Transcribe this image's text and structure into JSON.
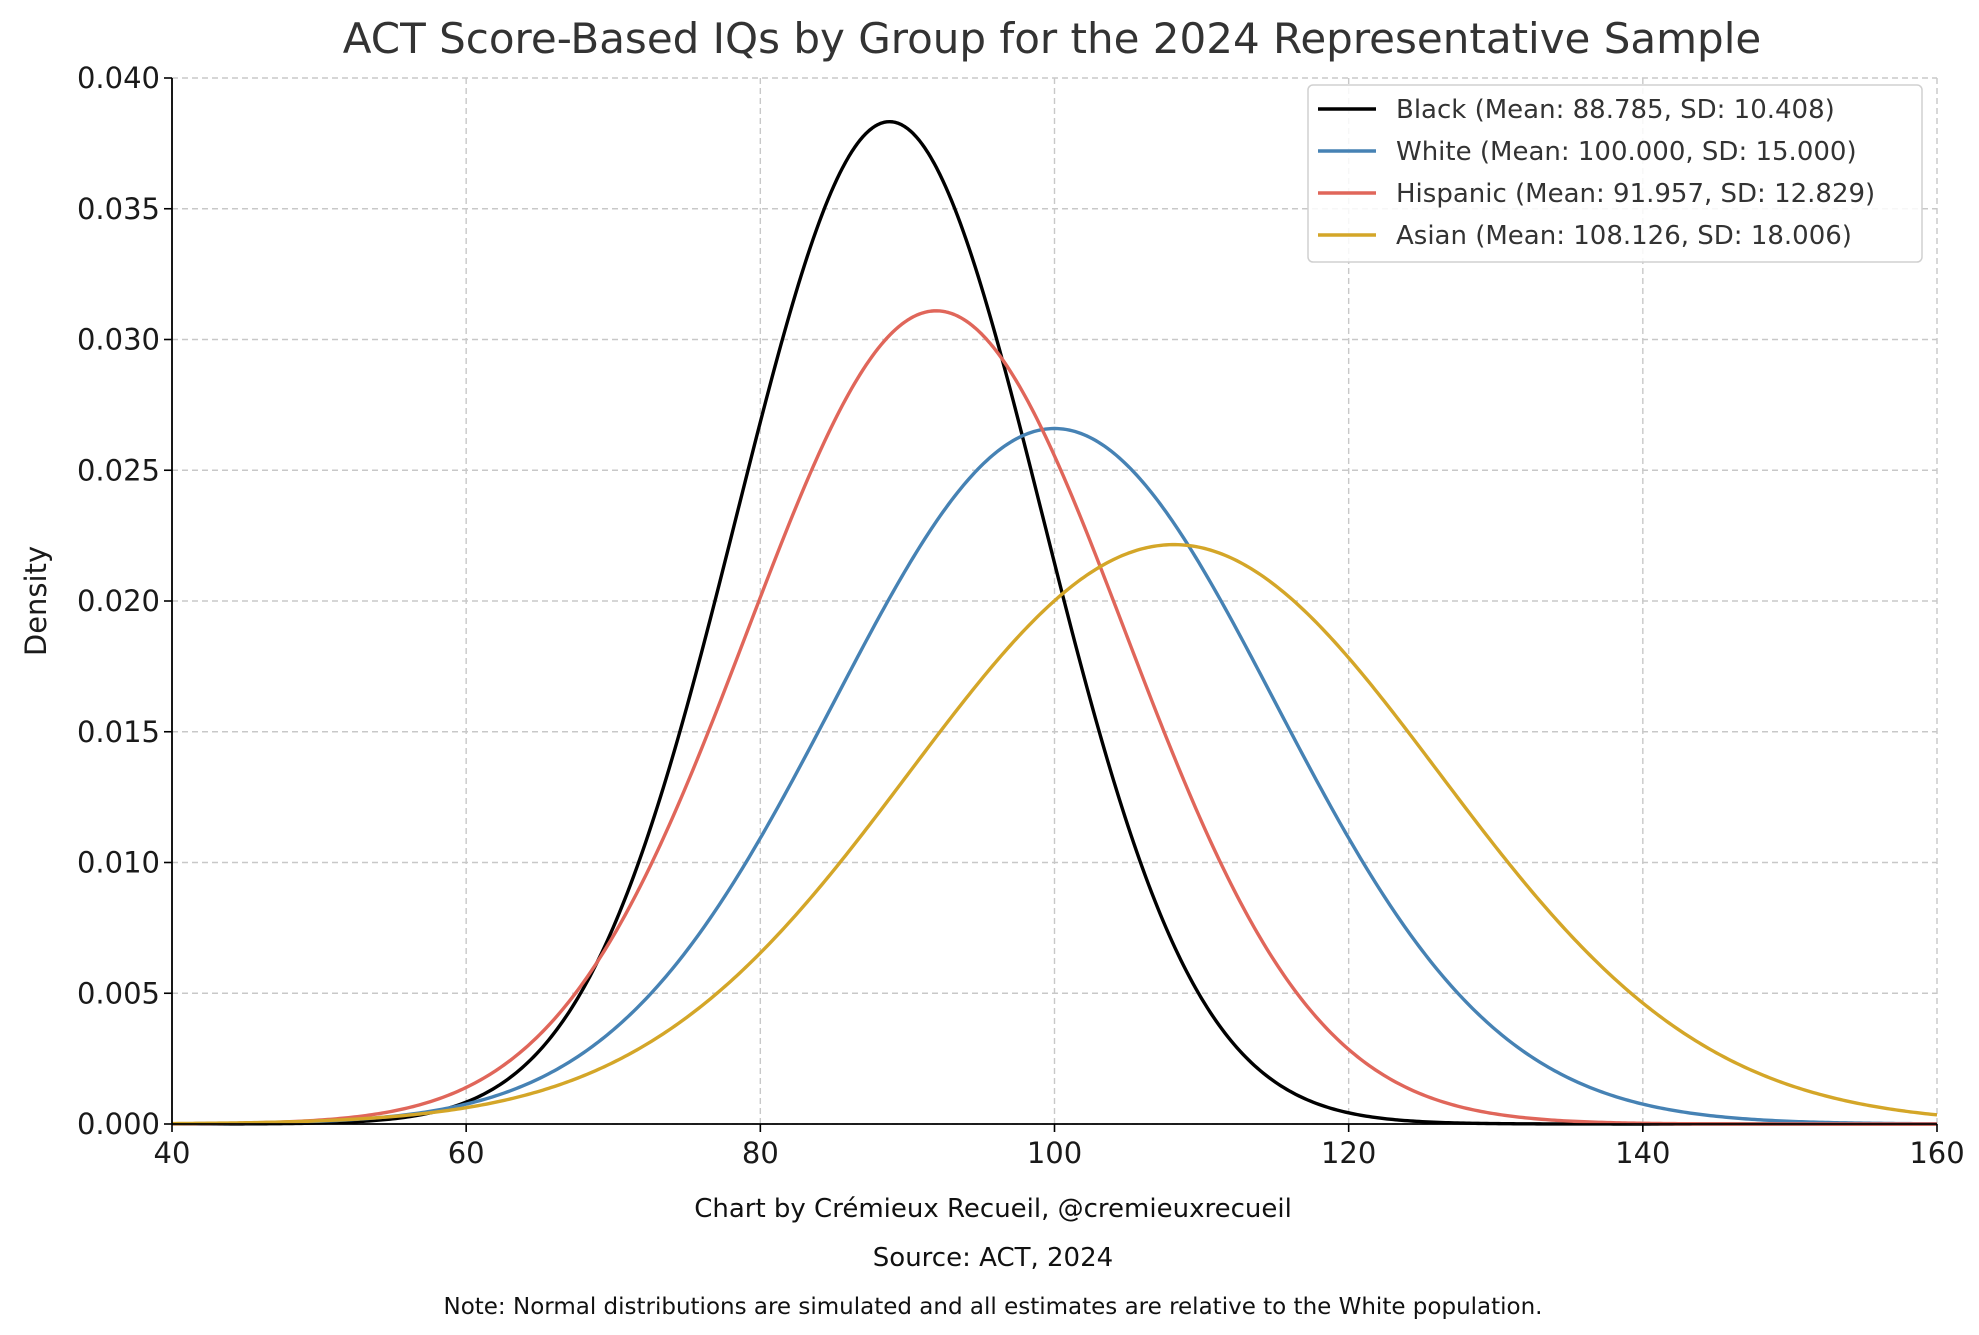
{
  "chart_data": {
    "type": "line",
    "title": "ACT Score-Based IQs by Group for the 2024 Representative Sample",
    "xlabel": "",
    "ylabel": "Density",
    "xlim": [
      40,
      160
    ],
    "ylim": [
      0,
      0.04
    ],
    "x_ticks": [
      "40",
      "60",
      "80",
      "100",
      "120",
      "140",
      "160"
    ],
    "y_ticks": [
      "0.000",
      "0.005",
      "0.010",
      "0.015",
      "0.020",
      "0.025",
      "0.030",
      "0.035",
      "0.040"
    ],
    "grid": true,
    "legend_position": "top-right",
    "series": [
      {
        "name": "Black (Mean: 88.785, SD: 10.408)",
        "mean": 88.785,
        "sd": 10.408,
        "color": "#000000"
      },
      {
        "name": "White (Mean: 100.000, SD: 15.000)",
        "mean": 100.0,
        "sd": 15.0,
        "color": "#4682b4"
      },
      {
        "name": "Hispanic (Mean: 91.957, SD: 12.829)",
        "mean": 91.957,
        "sd": 12.829,
        "color": "#e0665a"
      },
      {
        "name": "Asian (Mean: 108.126, SD: 18.006)",
        "mean": 108.126,
        "sd": 18.006,
        "color": "#d4a628"
      }
    ]
  },
  "footer": {
    "credit": "Chart by Crémieux Recueil, @cremieuxrecueil",
    "source": "Source: ACT, 2024",
    "note": "Note: Normal distributions are simulated and all estimates are relative to the White population."
  }
}
